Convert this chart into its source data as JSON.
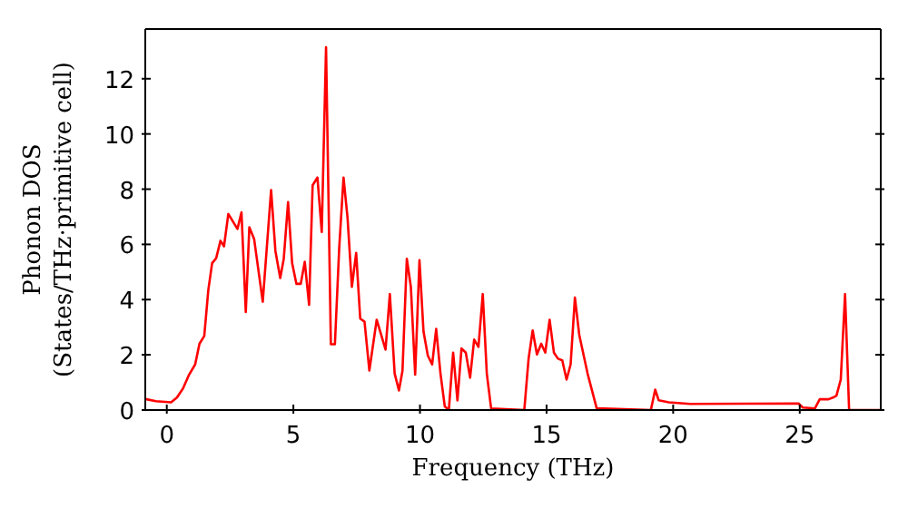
{
  "chart_data": {
    "type": "line",
    "xlabel": "Frequency (THz)",
    "ylabel": "Phonon DOS\n(States/THz·primitive cell)",
    "x": [
      -0.85,
      -0.43,
      0.17,
      0.4,
      0.64,
      0.88,
      1.12,
      1.29,
      1.48,
      1.64,
      1.79,
      1.95,
      2.12,
      2.26,
      2.43,
      2.79,
      2.95,
      3.12,
      3.26,
      3.45,
      3.79,
      4.12,
      4.29,
      4.48,
      4.62,
      4.79,
      4.95,
      5.12,
      5.29,
      5.45,
      5.62,
      5.76,
      5.95,
      6.12,
      6.29,
      6.48,
      6.64,
      6.81,
      6.98,
      7.14,
      7.31,
      7.48,
      7.64,
      7.81,
      8.0,
      8.29,
      8.64,
      8.81,
      9.0,
      9.17,
      9.31,
      9.48,
      9.64,
      9.81,
      9.98,
      10.14,
      10.31,
      10.48,
      10.64,
      10.81,
      10.98,
      11.14,
      11.31,
      11.48,
      11.64,
      11.81,
      11.98,
      12.14,
      12.31,
      12.48,
      12.64,
      12.81,
      14.12,
      14.29,
      14.45,
      14.62,
      14.79,
      14.95,
      15.12,
      15.29,
      15.45,
      15.62,
      15.79,
      15.95,
      16.12,
      16.29,
      16.62,
      16.98,
      19.12,
      19.29,
      19.43,
      19.83,
      20.67,
      24.95,
      25.12,
      25.6,
      25.79,
      26.14,
      26.31,
      26.45,
      26.62,
      26.79,
      26.95,
      28.2
    ],
    "series": [
      {
        "color": "#ff0000",
        "values": [
          0.4,
          0.32,
          0.28,
          0.45,
          0.78,
          1.28,
          1.65,
          2.4,
          2.68,
          4.35,
          5.32,
          5.5,
          6.13,
          5.93,
          7.1,
          6.56,
          7.16,
          3.55,
          6.62,
          6.19,
          3.92,
          7.97,
          5.76,
          4.78,
          5.48,
          7.53,
          5.32,
          4.57,
          4.57,
          5.37,
          3.81,
          8.14,
          8.42,
          6.45,
          13.14,
          2.38,
          2.38,
          5.87,
          8.42,
          6.95,
          4.46,
          5.69,
          3.31,
          3.2,
          1.43,
          3.27,
          2.19,
          4.2,
          1.32,
          0.71,
          1.43,
          5.48,
          4.46,
          1.28,
          5.43,
          2.84,
          1.97,
          1.65,
          2.94,
          1.32,
          0.13,
          0,
          2.08,
          0.35,
          2.23,
          2.08,
          1.17,
          2.55,
          2.29,
          4.2,
          1.32,
          0.06,
          0,
          1.86,
          2.88,
          2.01,
          2.4,
          2.08,
          3.27,
          2.08,
          1.86,
          1.8,
          1.1,
          1.65,
          4.07,
          2.73,
          1.32,
          0.06,
          0,
          0.74,
          0.35,
          0.28,
          0.22,
          0.24,
          0.09,
          0.06,
          0.39,
          0.39,
          0.45,
          0.52,
          1.1,
          4.2,
          0,
          0
        ]
      }
    ],
    "xlim": [
      -0.85,
      28.2
    ],
    "ylim": [
      0,
      13.8
    ],
    "xticks": [
      0,
      5,
      10,
      15,
      20,
      25
    ],
    "yticks": [
      0,
      2,
      4,
      6,
      8,
      10,
      12
    ],
    "grid": false,
    "legend": false,
    "marker": "none",
    "line_style": "solid"
  }
}
